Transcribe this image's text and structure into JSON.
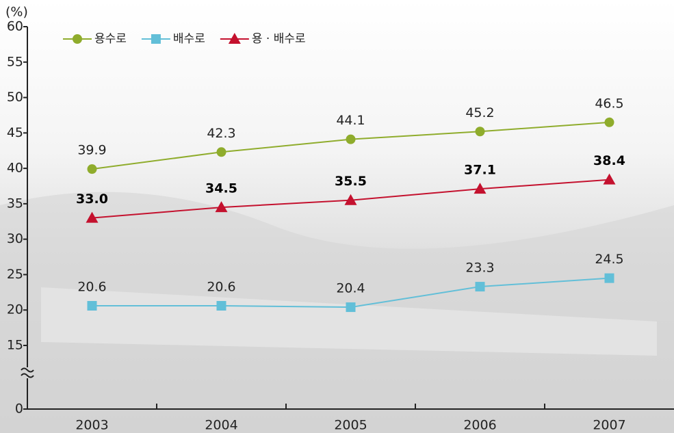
{
  "chart_data": {
    "type": "line",
    "y_label": "(%)",
    "categories": [
      "2003",
      "2004",
      "2005",
      "2006",
      "2007"
    ],
    "ylim": [
      0,
      60
    ],
    "yticks": [
      0,
      15,
      20,
      25,
      30,
      35,
      40,
      45,
      50,
      55,
      60
    ],
    "axis_break": true,
    "legend": "top-left",
    "series": [
      {
        "name": "용수로",
        "color": "#8fac2c",
        "marker": "circle",
        "values": [
          39.9,
          42.3,
          44.1,
          45.2,
          46.5
        ],
        "value_labels": [
          "39.9",
          "42.3",
          "44.1",
          "45.2",
          "46.5"
        ]
      },
      {
        "name": "배수로",
        "color": "#62bfd8",
        "marker": "square",
        "values": [
          20.6,
          20.6,
          20.4,
          23.3,
          24.5
        ],
        "value_labels": [
          "20.6",
          "20.6",
          "20.4",
          "23.3",
          "24.5"
        ]
      },
      {
        "name": "용 · 배수로",
        "color": "#c4112e",
        "marker": "triangle",
        "values": [
          33.0,
          34.5,
          35.5,
          37.1,
          38.4
        ],
        "value_labels": [
          "33.0",
          "34.5",
          "35.5",
          "37.1",
          "38.4"
        ],
        "bold_labels": true
      }
    ]
  }
}
